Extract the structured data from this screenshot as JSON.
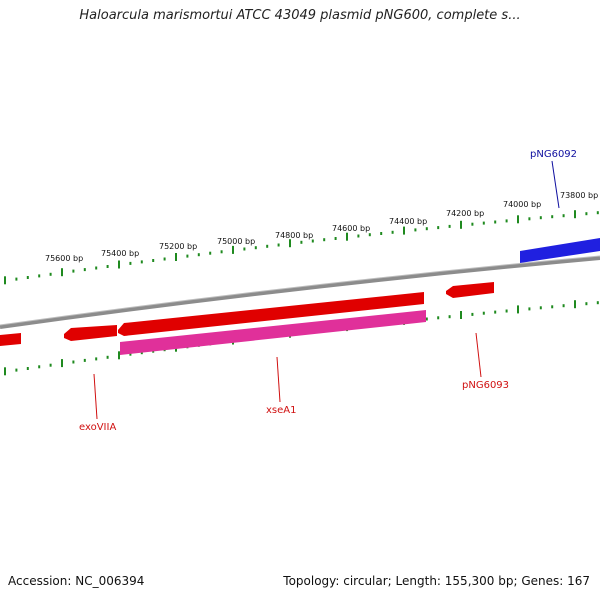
{
  "title": "Haloarcula marismortui ATCC 43049 plasmid pNG600, complete s...",
  "accession_text": "Accession: NC_006394",
  "summary_text": "Topology: circular; Length: 155,300 bp; Genes: 167",
  "colors": {
    "backbone": "#8c8c8c",
    "tick": "#1f8a1f",
    "forward_gene": "#2020e0",
    "reverse_gene": "#e00000",
    "rna_gene": "#e0309a",
    "label_blue": "#1010a0",
    "label_red": "#d01010"
  },
  "ruler_labels": [
    "75600 bp",
    "75400 bp",
    "75200 bp",
    "75000 bp",
    "74800 bp",
    "74600 bp",
    "74400 bp",
    "74200 bp",
    "74000 bp",
    "73800 bp"
  ],
  "gene_labels": {
    "pNG6092": "pNG6092",
    "pNG6093": "pNG6093",
    "xseA1": "xseA1",
    "exoVIIA": "exoVIIA"
  }
}
